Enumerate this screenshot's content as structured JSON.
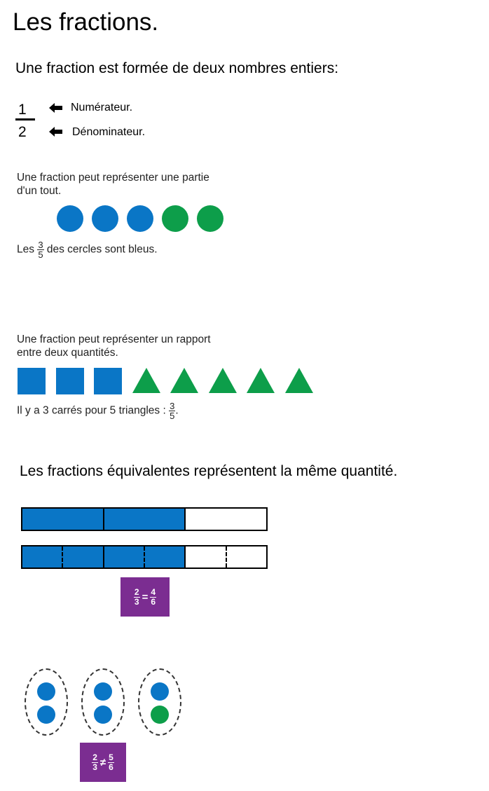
{
  "title": "Les fractions.",
  "intro": "Une fraction est formée de deux nombres entiers:",
  "example_fraction": {
    "numerator": "1",
    "denominator": "2",
    "numerator_label": "Numérateur.",
    "denominator_label": "Dénominateur."
  },
  "part_of_whole": {
    "text_line1": "Une fraction peut représenter une partie",
    "text_line2": "d'un tout.",
    "circles": [
      "blue",
      "blue",
      "blue",
      "green",
      "green"
    ],
    "caption_before": "Les",
    "caption_num": "3",
    "caption_den": "5",
    "caption_after": "des cercles sont bleus."
  },
  "ratio": {
    "text_line1": "Une fraction peut représenter un rapport",
    "text_line2": "entre deux quantités.",
    "shapes": [
      "square",
      "square",
      "square",
      "triangle",
      "triangle",
      "triangle",
      "triangle",
      "triangle"
    ],
    "caption_before": "Il y a 3 carrés pour 5 triangles :",
    "caption_num": "3",
    "caption_den": "5",
    "caption_after": "."
  },
  "equivalent": {
    "heading": "Les fractions équivalentes représentent la même quantité.",
    "strip_thirds_filled": 2,
    "strip_thirds_total": 3,
    "strip_sixths_filled": 4,
    "strip_sixths_total": 6,
    "badge": {
      "left_num": "2",
      "left_den": "3",
      "operator": "=",
      "right_num": "4",
      "right_den": "6"
    }
  },
  "not_equivalent": {
    "groups": [
      [
        "blue",
        "blue"
      ],
      [
        "blue",
        "blue"
      ],
      [
        "blue",
        "green"
      ]
    ],
    "badge": {
      "left_num": "2",
      "left_den": "3",
      "operator": "≠",
      "right_num": "5",
      "right_den": "6"
    }
  },
  "colors": {
    "blue": "#0a76c6",
    "green": "#0d9e4a",
    "purple": "#7b2d91"
  }
}
